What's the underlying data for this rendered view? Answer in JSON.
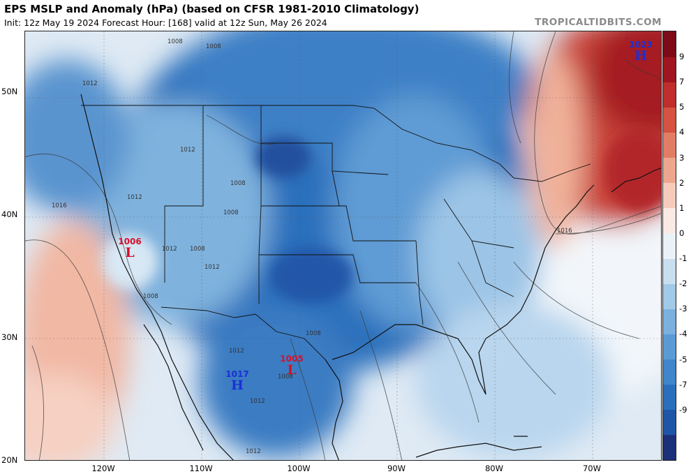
{
  "header": {
    "title": "EPS MSLP and Anomaly (hPa) (based on CFSR 1981-2010 Climatology)",
    "subtitle": "Init: 12z May 19 2024   Forecast Hour: [168]   valid at 12z Sun, May 26 2024",
    "brand": "TROPICALTIDBITS.COM"
  },
  "axes": {
    "lat_labels": [
      "50N",
      "40N",
      "30N",
      "20N"
    ],
    "lon_labels": [
      "120W",
      "110W",
      "100W",
      "90W",
      "80W",
      "70W"
    ]
  },
  "colorbar": {
    "labels": [
      "9",
      "7",
      "5",
      "4",
      "3",
      "2",
      "1",
      "0",
      "-1",
      "-2",
      "-3",
      "-4",
      "-5",
      "-7",
      "-9"
    ],
    "colors": [
      "#1b2f7a",
      "#1f55a8",
      "#2a6fbd",
      "#3f86cc",
      "#5a9bd6",
      "#7bb1df",
      "#a1c9e8",
      "#c9dff0",
      "#eaf2f8",
      "#fbe9e3",
      "#f6cbbb",
      "#eea68f",
      "#e37c64",
      "#d55340",
      "#c02d2a",
      "#a0151f",
      "#7e0a18"
    ]
  },
  "systems": [
    {
      "type": "high",
      "pressure": "1023",
      "letter": "H"
    },
    {
      "type": "low",
      "pressure": "1006",
      "letter": "L"
    },
    {
      "type": "low",
      "pressure": "1005",
      "letter": "L"
    },
    {
      "type": "high",
      "pressure": "1017",
      "letter": "H"
    }
  ],
  "isobar_labels": [
    "1008",
    "1008",
    "1012",
    "1012",
    "1012",
    "1016",
    "1012",
    "1008",
    "1008",
    "1012",
    "1008",
    "1008",
    "1008",
    "1016",
    "1012",
    "1008",
    "1012",
    "1012"
  ]
}
